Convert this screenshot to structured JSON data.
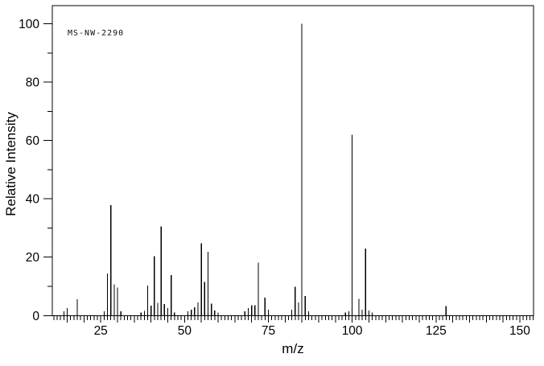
{
  "watermark_label": "MS-NW-2290",
  "chart_data": {
    "type": "bar",
    "title": "MS-NW-2290",
    "xlabel": "m/z",
    "ylabel": "Relative Intensity",
    "xlim": [
      10.55,
      154.1
    ],
    "ylim": [
      0,
      106.2
    ],
    "grid": false,
    "legend": false,
    "x_major_tick_labels": [
      25,
      50,
      75,
      100,
      125,
      150
    ],
    "x_medium_tick_step": 5,
    "x_minor_tick_step": 1,
    "y_major_tick_labels": [
      0,
      20,
      40,
      60,
      80,
      100
    ],
    "y_minor_tick_step": 10,
    "peaks": [
      {
        "mz": 14,
        "intensity": 1.5
      },
      {
        "mz": 15,
        "intensity": 2.5
      },
      {
        "mz": 18,
        "intensity": 5.6
      },
      {
        "mz": 26,
        "intensity": 1.5
      },
      {
        "mz": 27,
        "intensity": 14.4
      },
      {
        "mz": 28,
        "intensity": 37.8
      },
      {
        "mz": 29,
        "intensity": 10.7
      },
      {
        "mz": 30,
        "intensity": 9.6
      },
      {
        "mz": 31,
        "intensity": 1.5
      },
      {
        "mz": 37,
        "intensity": 1.0
      },
      {
        "mz": 38,
        "intensity": 1.6
      },
      {
        "mz": 39,
        "intensity": 10.3
      },
      {
        "mz": 40,
        "intensity": 3.4
      },
      {
        "mz": 41,
        "intensity": 20.4
      },
      {
        "mz": 42,
        "intensity": 4.3
      },
      {
        "mz": 43,
        "intensity": 30.5
      },
      {
        "mz": 44,
        "intensity": 3.9
      },
      {
        "mz": 45,
        "intensity": 2.6
      },
      {
        "mz": 46,
        "intensity": 13.9
      },
      {
        "mz": 47,
        "intensity": 1.0
      },
      {
        "mz": 51,
        "intensity": 1.5
      },
      {
        "mz": 52,
        "intensity": 2.0
      },
      {
        "mz": 53,
        "intensity": 2.9
      },
      {
        "mz": 54,
        "intensity": 4.5
      },
      {
        "mz": 55,
        "intensity": 24.8
      },
      {
        "mz": 56,
        "intensity": 11.5
      },
      {
        "mz": 57,
        "intensity": 21.8
      },
      {
        "mz": 58,
        "intensity": 4.1
      },
      {
        "mz": 59,
        "intensity": 1.8
      },
      {
        "mz": 60,
        "intensity": 1.0
      },
      {
        "mz": 68,
        "intensity": 1.5
      },
      {
        "mz": 69,
        "intensity": 2.5
      },
      {
        "mz": 70,
        "intensity": 3.5
      },
      {
        "mz": 71,
        "intensity": 3.5
      },
      {
        "mz": 72,
        "intensity": 18.1
      },
      {
        "mz": 74,
        "intensity": 6.1
      },
      {
        "mz": 75,
        "intensity": 2.0
      },
      {
        "mz": 82,
        "intensity": 2.0
      },
      {
        "mz": 83,
        "intensity": 9.8
      },
      {
        "mz": 84,
        "intensity": 4.5
      },
      {
        "mz": 85,
        "intensity": 100.0
      },
      {
        "mz": 86,
        "intensity": 6.7
      },
      {
        "mz": 87,
        "intensity": 1.5
      },
      {
        "mz": 98,
        "intensity": 1.0
      },
      {
        "mz": 99,
        "intensity": 1.5
      },
      {
        "mz": 100,
        "intensity": 62.0
      },
      {
        "mz": 102,
        "intensity": 5.7
      },
      {
        "mz": 103,
        "intensity": 2.0
      },
      {
        "mz": 104,
        "intensity": 22.9
      },
      {
        "mz": 105,
        "intensity": 1.8
      },
      {
        "mz": 106,
        "intensity": 1.0
      },
      {
        "mz": 128,
        "intensity": 3.2
      }
    ]
  }
}
